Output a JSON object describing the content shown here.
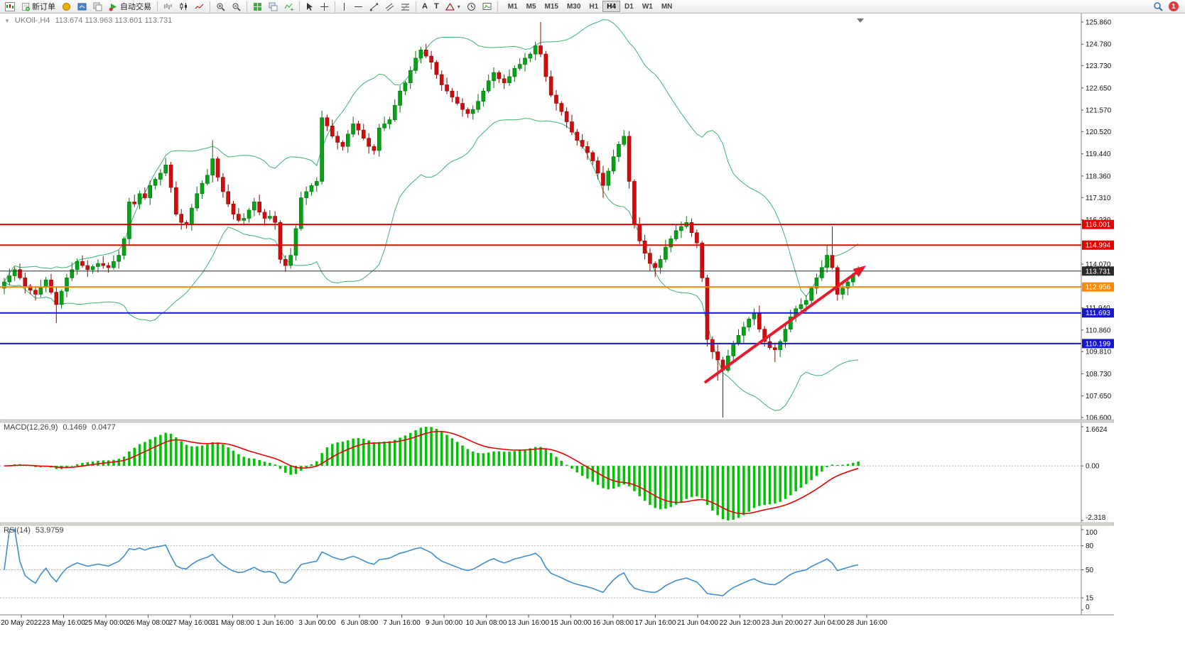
{
  "toolbar": {
    "new_order_label": "新订单",
    "auto_trading_label": "自动交易",
    "timeframes": [
      "M1",
      "M5",
      "M15",
      "M30",
      "H1",
      "H4",
      "D1",
      "W1",
      "MN"
    ],
    "active_timeframe": "H4",
    "notification_count": "1"
  },
  "chart": {
    "symbol_period": "UKOil-,H4",
    "ohlc_text": "113.674 113.963 113.601 113.731"
  },
  "macd_panel": {
    "name": "MACD(12,26,9)",
    "value_main": "0.1469",
    "value_signal": "0.0477",
    "axis": [
      "1.6624",
      "0.00",
      "-2.318"
    ]
  },
  "rsi_panel": {
    "name": "RSI(14)",
    "value": "53.9759",
    "axis": [
      "100",
      "80",
      "50",
      "15",
      "0"
    ]
  },
  "price_axis": {
    "labels": [
      "125.860",
      "124.780",
      "123.730",
      "122.650",
      "121.570",
      "120.520",
      "119.440",
      "118.360",
      "117.310",
      "116.230",
      "114.070",
      "111.940",
      "110.860",
      "109.810",
      "108.730",
      "107.650",
      "106.600"
    ]
  },
  "time_axis": {
    "labels": [
      "20 May 2022",
      "23 May 16:00",
      "25 May 00:00",
      "26 May 08:00",
      "27 May 16:00",
      "31 May 08:00",
      "1 Jun 16:00",
      "3 Jun 00:00",
      "6 Jun 08:00",
      "7 Jun 16:00",
      "9 Jun 00:00",
      "10 Jun 08:00",
      "13 Jun 16:00",
      "15 Jun 00:00",
      "16 Jun 08:00",
      "17 Jun 16:00",
      "21 Jun 04:00",
      "22 Jun 12:00",
      "23 Jun 20:00",
      "27 Jun 04:00",
      "28 Jun 16:00"
    ]
  },
  "icons": {
    "chart-menu-icon": "mini-candlestick-window",
    "new-order-icon": "document-plus",
    "autotrading-icon": "green-play-triangle",
    "search-icon": "magnifier",
    "zoom-in-icon": "magnifier-plus",
    "zoom-out-icon": "magnifier-minus",
    "crosshair-icon": "cross",
    "cursor-icon": "arrow-pointer",
    "notification-badge": "red-circle-count"
  },
  "chart_data": {
    "type": "candlestick",
    "symbol": "UKOil-",
    "timeframe": "H4",
    "ohlc": {
      "open": 113.674,
      "high": 113.963,
      "low": 113.601,
      "close": 113.731
    },
    "price_range": [
      106.6,
      125.86
    ],
    "bollinger": {
      "period": 20,
      "deviation": 2
    },
    "colors": {
      "up": "#00a513",
      "up_border": "#01700e",
      "down": "#d40b0b",
      "down_border": "#8f0404",
      "bollinger": "#3cb371",
      "macd_hist": "#00c300",
      "macd_signal": "#e80000",
      "rsi": "#3e8ed0"
    },
    "hlines": [
      {
        "price": 116.001,
        "color": "#e60000",
        "width": 2,
        "label": "116.001"
      },
      {
        "price": 114.994,
        "color": "#e60000",
        "width": 2,
        "label": "114.994"
      },
      {
        "price": 113.731,
        "color": "#2b2b2b",
        "width": 1,
        "label": "113.731"
      },
      {
        "price": 112.956,
        "color": "#ff8a00",
        "width": 2,
        "label": "112.956"
      },
      {
        "price": 111.693,
        "color": "#1616cf",
        "width": 2,
        "label": "111.693"
      },
      {
        "price": 110.199,
        "color": "#1616cf",
        "width": 2,
        "label": "110.199"
      }
    ],
    "trend_arrow": {
      "from": {
        "index": 134.5,
        "price": 108.3
      },
      "to": {
        "index": 165.5,
        "price": 114.0
      },
      "color": "#e8192c",
      "width": 4
    },
    "indicators": [
      {
        "type": "macd",
        "fast": 12,
        "slow": 26,
        "signal": 9,
        "values": [
          0.1469,
          0.0477
        ],
        "range": [
          -2.318,
          1.6624
        ]
      },
      {
        "type": "rsi",
        "period": 14,
        "value": 53.9759,
        "levels": [
          80,
          50,
          15
        ],
        "range": [
          0,
          100
        ]
      }
    ],
    "candles": [
      [
        112.9,
        113.4,
        112.6,
        113.2
      ],
      [
        113.2,
        113.85,
        113.05,
        113.5
      ],
      [
        113.5,
        113.95,
        113.25,
        113.8
      ],
      [
        113.8,
        114.1,
        113.3,
        113.4
      ],
      [
        113.4,
        113.65,
        112.65,
        113.0
      ],
      [
        113.0,
        113.1,
        112.6,
        112.8
      ],
      [
        112.8,
        113.0,
        112.3,
        112.6
      ],
      [
        112.6,
        113.3,
        112.45,
        112.95
      ],
      [
        112.95,
        113.45,
        112.7,
        113.3
      ],
      [
        113.3,
        113.6,
        112.6,
        112.7
      ],
      [
        112.7,
        112.95,
        111.2,
        112.1
      ],
      [
        112.1,
        112.85,
        111.9,
        112.75
      ],
      [
        112.75,
        113.6,
        112.45,
        113.4
      ],
      [
        113.4,
        114.15,
        113.25,
        113.8
      ],
      [
        113.8,
        114.35,
        113.55,
        114.2
      ],
      [
        114.2,
        114.5,
        113.9,
        114.0
      ],
      [
        114.0,
        114.25,
        113.45,
        113.8
      ],
      [
        113.8,
        114.05,
        113.6,
        113.95
      ],
      [
        113.95,
        114.3,
        113.65,
        114.1
      ],
      [
        114.1,
        114.45,
        113.85,
        114.0
      ],
      [
        114.0,
        114.15,
        113.65,
        113.9
      ],
      [
        113.9,
        114.5,
        113.8,
        114.2
      ],
      [
        114.2,
        114.75,
        113.85,
        114.5
      ],
      [
        114.5,
        115.4,
        114.3,
        115.3
      ],
      [
        115.3,
        117.3,
        115.0,
        117.1
      ],
      [
        117.1,
        117.45,
        116.85,
        117.0
      ],
      [
        117.0,
        117.65,
        116.75,
        117.5
      ],
      [
        117.5,
        117.8,
        117.2,
        117.3
      ],
      [
        117.3,
        118.15,
        116.95,
        117.9
      ],
      [
        117.9,
        118.3,
        117.7,
        118.2
      ],
      [
        118.2,
        118.7,
        117.9,
        118.5
      ],
      [
        118.5,
        119.25,
        118.35,
        118.9
      ],
      [
        118.9,
        119.05,
        117.55,
        117.8
      ],
      [
        117.8,
        118.1,
        116.4,
        116.5
      ],
      [
        116.5,
        116.75,
        115.75,
        116.1
      ],
      [
        116.1,
        116.2,
        115.8,
        116.0
      ],
      [
        116.0,
        117.0,
        115.7,
        116.8
      ],
      [
        116.8,
        117.85,
        116.65,
        117.5
      ],
      [
        117.5,
        118.15,
        117.25,
        118.0
      ],
      [
        118.0,
        118.7,
        117.9,
        118.4
      ],
      [
        118.4,
        120.1,
        118.05,
        119.2
      ],
      [
        119.2,
        119.3,
        118.1,
        118.3
      ],
      [
        118.3,
        118.5,
        117.3,
        117.6
      ],
      [
        117.6,
        117.95,
        116.85,
        117.0
      ],
      [
        117.0,
        117.15,
        116.25,
        116.5
      ],
      [
        116.5,
        116.8,
        116.1,
        116.2
      ],
      [
        116.2,
        116.55,
        115.95,
        116.3
      ],
      [
        116.3,
        116.8,
        116.1,
        116.7
      ],
      [
        116.7,
        117.3,
        116.4,
        117.1
      ],
      [
        117.1,
        117.45,
        116.45,
        116.6
      ],
      [
        116.6,
        116.75,
        115.95,
        116.3
      ],
      [
        116.3,
        116.7,
        116.2,
        116.4
      ],
      [
        116.4,
        116.65,
        115.75,
        116.1
      ],
      [
        116.1,
        116.2,
        114.1,
        114.3
      ],
      [
        114.3,
        114.5,
        113.7,
        114.0
      ],
      [
        114.0,
        114.85,
        113.85,
        114.5
      ],
      [
        114.5,
        115.95,
        114.25,
        115.8
      ],
      [
        115.8,
        117.6,
        115.7,
        117.3
      ],
      [
        117.3,
        117.85,
        116.95,
        117.6
      ],
      [
        117.6,
        118.0,
        117.4,
        117.9
      ],
      [
        117.9,
        118.3,
        117.6,
        118.1
      ],
      [
        118.1,
        121.55,
        117.95,
        121.2
      ],
      [
        121.2,
        121.35,
        120.55,
        120.8
      ],
      [
        120.8,
        121.1,
        120.2,
        120.3
      ],
      [
        120.3,
        120.55,
        119.65,
        120.0
      ],
      [
        120.0,
        120.1,
        119.6,
        119.8
      ],
      [
        119.8,
        120.6,
        119.5,
        120.4
      ],
      [
        120.4,
        121.25,
        120.25,
        120.9
      ],
      [
        120.9,
        121.05,
        120.35,
        120.6
      ],
      [
        120.6,
        120.9,
        120.1,
        120.2
      ],
      [
        120.2,
        120.45,
        119.45,
        119.8
      ],
      [
        119.8,
        119.9,
        119.4,
        119.6
      ],
      [
        119.6,
        120.9,
        119.3,
        120.7
      ],
      [
        120.7,
        121.25,
        120.55,
        120.9
      ],
      [
        120.9,
        121.25,
        120.65,
        121.1
      ],
      [
        121.1,
        122.1,
        121.0,
        121.8
      ],
      [
        121.8,
        122.75,
        121.45,
        122.5
      ],
      [
        122.5,
        123.0,
        122.3,
        122.9
      ],
      [
        122.9,
        123.7,
        122.6,
        123.5
      ],
      [
        123.5,
        124.45,
        123.35,
        124.1
      ],
      [
        124.1,
        124.65,
        123.85,
        124.5
      ],
      [
        124.5,
        124.8,
        124.1,
        124.2
      ],
      [
        124.2,
        124.45,
        123.55,
        123.9
      ],
      [
        123.9,
        124.0,
        123.1,
        123.3
      ],
      [
        123.3,
        123.5,
        122.5,
        122.8
      ],
      [
        122.8,
        123.15,
        122.35,
        122.5
      ],
      [
        122.5,
        122.65,
        121.95,
        122.2
      ],
      [
        122.2,
        122.5,
        121.8,
        121.9
      ],
      [
        121.9,
        122.15,
        121.25,
        121.6
      ],
      [
        121.6,
        121.7,
        121.2,
        121.4
      ],
      [
        121.4,
        121.8,
        121.1,
        121.6
      ],
      [
        121.6,
        122.35,
        121.45,
        122.0
      ],
      [
        122.0,
        122.65,
        121.75,
        122.5
      ],
      [
        122.5,
        123.3,
        122.4,
        123.0
      ],
      [
        123.0,
        123.65,
        122.65,
        123.4
      ],
      [
        123.4,
        123.5,
        122.9,
        123.1
      ],
      [
        123.1,
        123.3,
        122.6,
        122.9
      ],
      [
        122.9,
        123.55,
        122.75,
        123.2
      ],
      [
        123.2,
        123.75,
        122.95,
        123.6
      ],
      [
        123.6,
        124.1,
        123.5,
        123.8
      ],
      [
        123.8,
        124.35,
        123.45,
        124.1
      ],
      [
        124.1,
        124.4,
        123.9,
        124.3
      ],
      [
        124.3,
        124.9,
        124.0,
        124.7
      ],
      [
        124.7,
        125.86,
        124.15,
        124.3
      ],
      [
        124.3,
        124.45,
        122.95,
        123.2
      ],
      [
        123.2,
        123.5,
        122.2,
        122.3
      ],
      [
        122.3,
        122.55,
        121.55,
        121.9
      ],
      [
        121.9,
        122.0,
        121.3,
        121.5
      ],
      [
        121.5,
        121.7,
        120.7,
        121.0
      ],
      [
        121.0,
        121.35,
        120.35,
        120.5
      ],
      [
        120.5,
        120.65,
        119.85,
        120.1
      ],
      [
        120.1,
        120.4,
        119.7,
        119.8
      ],
      [
        119.8,
        120.05,
        119.15,
        119.5
      ],
      [
        119.5,
        119.6,
        118.9,
        119.1
      ],
      [
        119.1,
        119.3,
        118.2,
        118.5
      ],
      [
        118.5,
        118.85,
        117.3,
        117.9
      ],
      [
        117.9,
        118.75,
        117.65,
        118.6
      ],
      [
        118.6,
        119.65,
        118.45,
        119.3
      ],
      [
        119.3,
        120.05,
        119.05,
        119.9
      ],
      [
        119.9,
        120.6,
        119.8,
        120.3
      ],
      [
        120.3,
        120.55,
        117.75,
        118.1
      ],
      [
        118.1,
        118.2,
        115.8,
        116.0
      ],
      [
        116.0,
        116.35,
        115.05,
        115.2
      ],
      [
        115.2,
        115.5,
        114.3,
        114.6
      ],
      [
        114.6,
        114.85,
        113.75,
        114.1
      ],
      [
        114.1,
        114.2,
        113.45,
        113.9
      ],
      [
        113.9,
        114.5,
        113.6,
        114.3
      ],
      [
        114.3,
        115.25,
        114.15,
        114.9
      ],
      [
        114.9,
        115.45,
        114.65,
        115.3
      ],
      [
        115.3,
        116.0,
        115.2,
        115.7
      ],
      [
        115.7,
        116.15,
        115.35,
        115.9
      ],
      [
        115.9,
        116.4,
        115.8,
        116.1
      ],
      [
        116.1,
        116.3,
        115.4,
        115.6
      ],
      [
        115.6,
        115.75,
        114.85,
        115.1
      ],
      [
        115.1,
        115.2,
        113.2,
        113.4
      ],
      [
        113.4,
        113.55,
        110.05,
        110.4
      ],
      [
        110.4,
        110.55,
        109.45,
        109.8
      ],
      [
        109.8,
        110.15,
        108.4,
        109.4
      ],
      [
        109.4,
        109.55,
        106.6,
        108.9
      ],
      [
        108.9,
        109.9,
        108.8,
        109.6
      ],
      [
        109.6,
        110.35,
        109.25,
        110.2
      ],
      [
        110.2,
        110.9,
        110.1,
        110.6
      ],
      [
        110.6,
        111.25,
        110.25,
        111.0
      ],
      [
        111.0,
        111.5,
        110.8,
        111.4
      ],
      [
        111.4,
        111.9,
        111.1,
        111.7
      ],
      [
        111.7,
        112.05,
        110.75,
        110.9
      ],
      [
        110.9,
        111.05,
        110.05,
        110.3
      ],
      [
        110.3,
        110.6,
        109.9,
        110.0
      ],
      [
        110.0,
        110.25,
        109.3,
        109.9
      ],
      [
        109.9,
        110.4,
        109.55,
        110.3
      ],
      [
        110.3,
        111.1,
        110.0,
        110.9
      ],
      [
        110.9,
        111.85,
        110.75,
        111.5
      ],
      [
        111.5,
        112.05,
        111.25,
        111.9
      ],
      [
        111.9,
        112.4,
        111.8,
        112.1
      ],
      [
        112.1,
        112.55,
        111.75,
        112.3
      ],
      [
        112.3,
        113.0,
        112.1,
        112.9
      ],
      [
        112.9,
        113.6,
        112.6,
        113.4
      ],
      [
        113.4,
        114.25,
        113.25,
        113.9
      ],
      [
        113.9,
        115.0,
        113.65,
        114.5
      ],
      [
        114.5,
        115.9,
        113.8,
        113.9
      ],
      [
        113.9,
        114.0,
        112.3,
        112.6
      ],
      [
        112.6,
        113.1,
        112.35,
        112.9
      ],
      [
        112.9,
        113.35,
        112.55,
        113.2
      ],
      [
        113.2,
        113.65,
        113.0,
        113.5
      ],
      [
        113.67,
        113.96,
        113.6,
        113.73
      ]
    ]
  }
}
